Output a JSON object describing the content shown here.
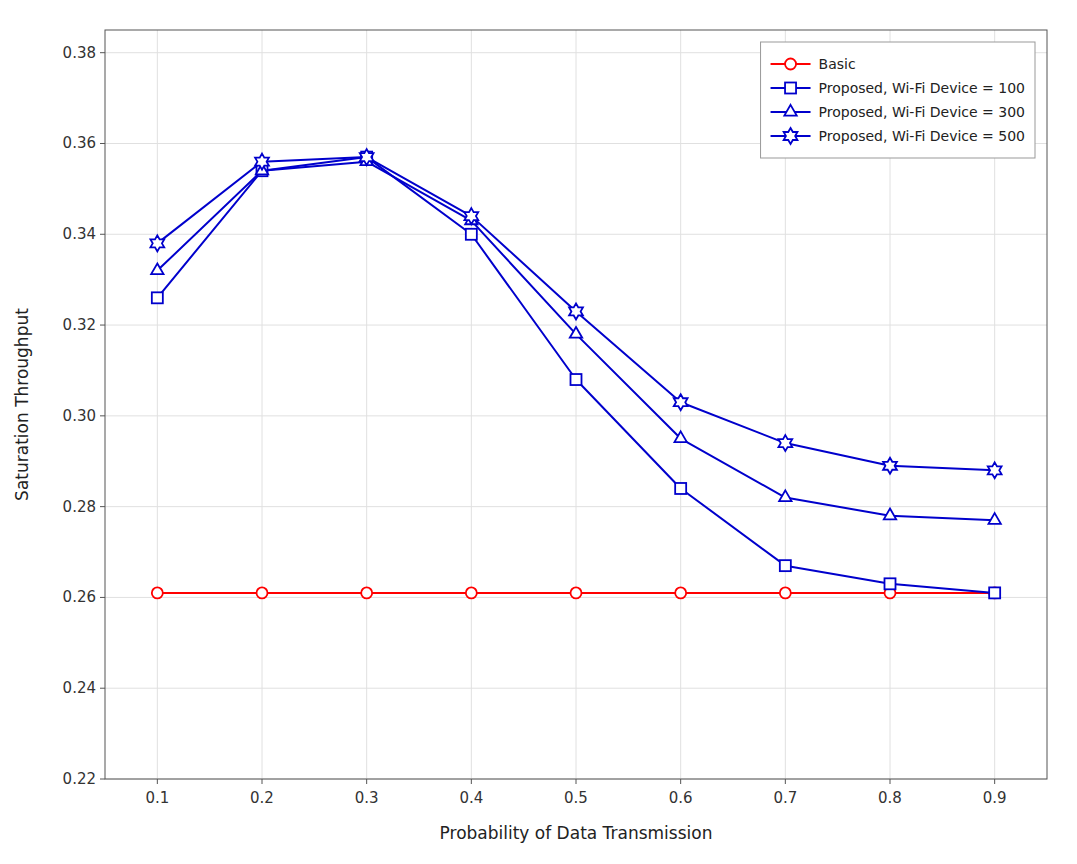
{
  "chart_data": {
    "type": "line",
    "xlabel": "Probability of Data Transmission",
    "ylabel": "Saturation Throughput",
    "x": [
      0.1,
      0.2,
      0.3,
      0.4,
      0.5,
      0.6,
      0.7,
      0.8,
      0.9
    ],
    "series": [
      {
        "name": "Basic",
        "color": "#ff0000",
        "marker": "circle",
        "values": [
          0.261,
          0.261,
          0.261,
          0.261,
          0.261,
          0.261,
          0.261,
          0.261,
          0.261
        ]
      },
      {
        "name": "Proposed, Wi-Fi Device = 100",
        "color": "#0000cc",
        "marker": "square",
        "values": [
          0.326,
          0.354,
          0.357,
          0.34,
          0.308,
          0.284,
          0.267,
          0.263,
          0.261
        ]
      },
      {
        "name": "Proposed, Wi-Fi Device = 300",
        "color": "#0000cc",
        "marker": "triangle",
        "values": [
          0.332,
          0.354,
          0.356,
          0.343,
          0.318,
          0.295,
          0.282,
          0.278,
          0.277
        ]
      },
      {
        "name": "Proposed, Wi-Fi Device = 500",
        "color": "#0000cc",
        "marker": "star",
        "values": [
          0.338,
          0.356,
          0.357,
          0.344,
          0.323,
          0.303,
          0.294,
          0.289,
          0.288
        ]
      }
    ],
    "xlim": [
      0.05,
      0.95
    ],
    "ylim": [
      0.22,
      0.385
    ],
    "xticks": [
      0.1,
      0.2,
      0.3,
      0.4,
      0.5,
      0.6,
      0.7,
      0.8,
      0.9
    ],
    "yticks": [
      0.22,
      0.24,
      0.26,
      0.28,
      {
        "value": 0.3,
        "label": "0.30"
      },
      0.32,
      0.34,
      0.36,
      0.38
    ],
    "grid": true,
    "legend": "upper right"
  }
}
